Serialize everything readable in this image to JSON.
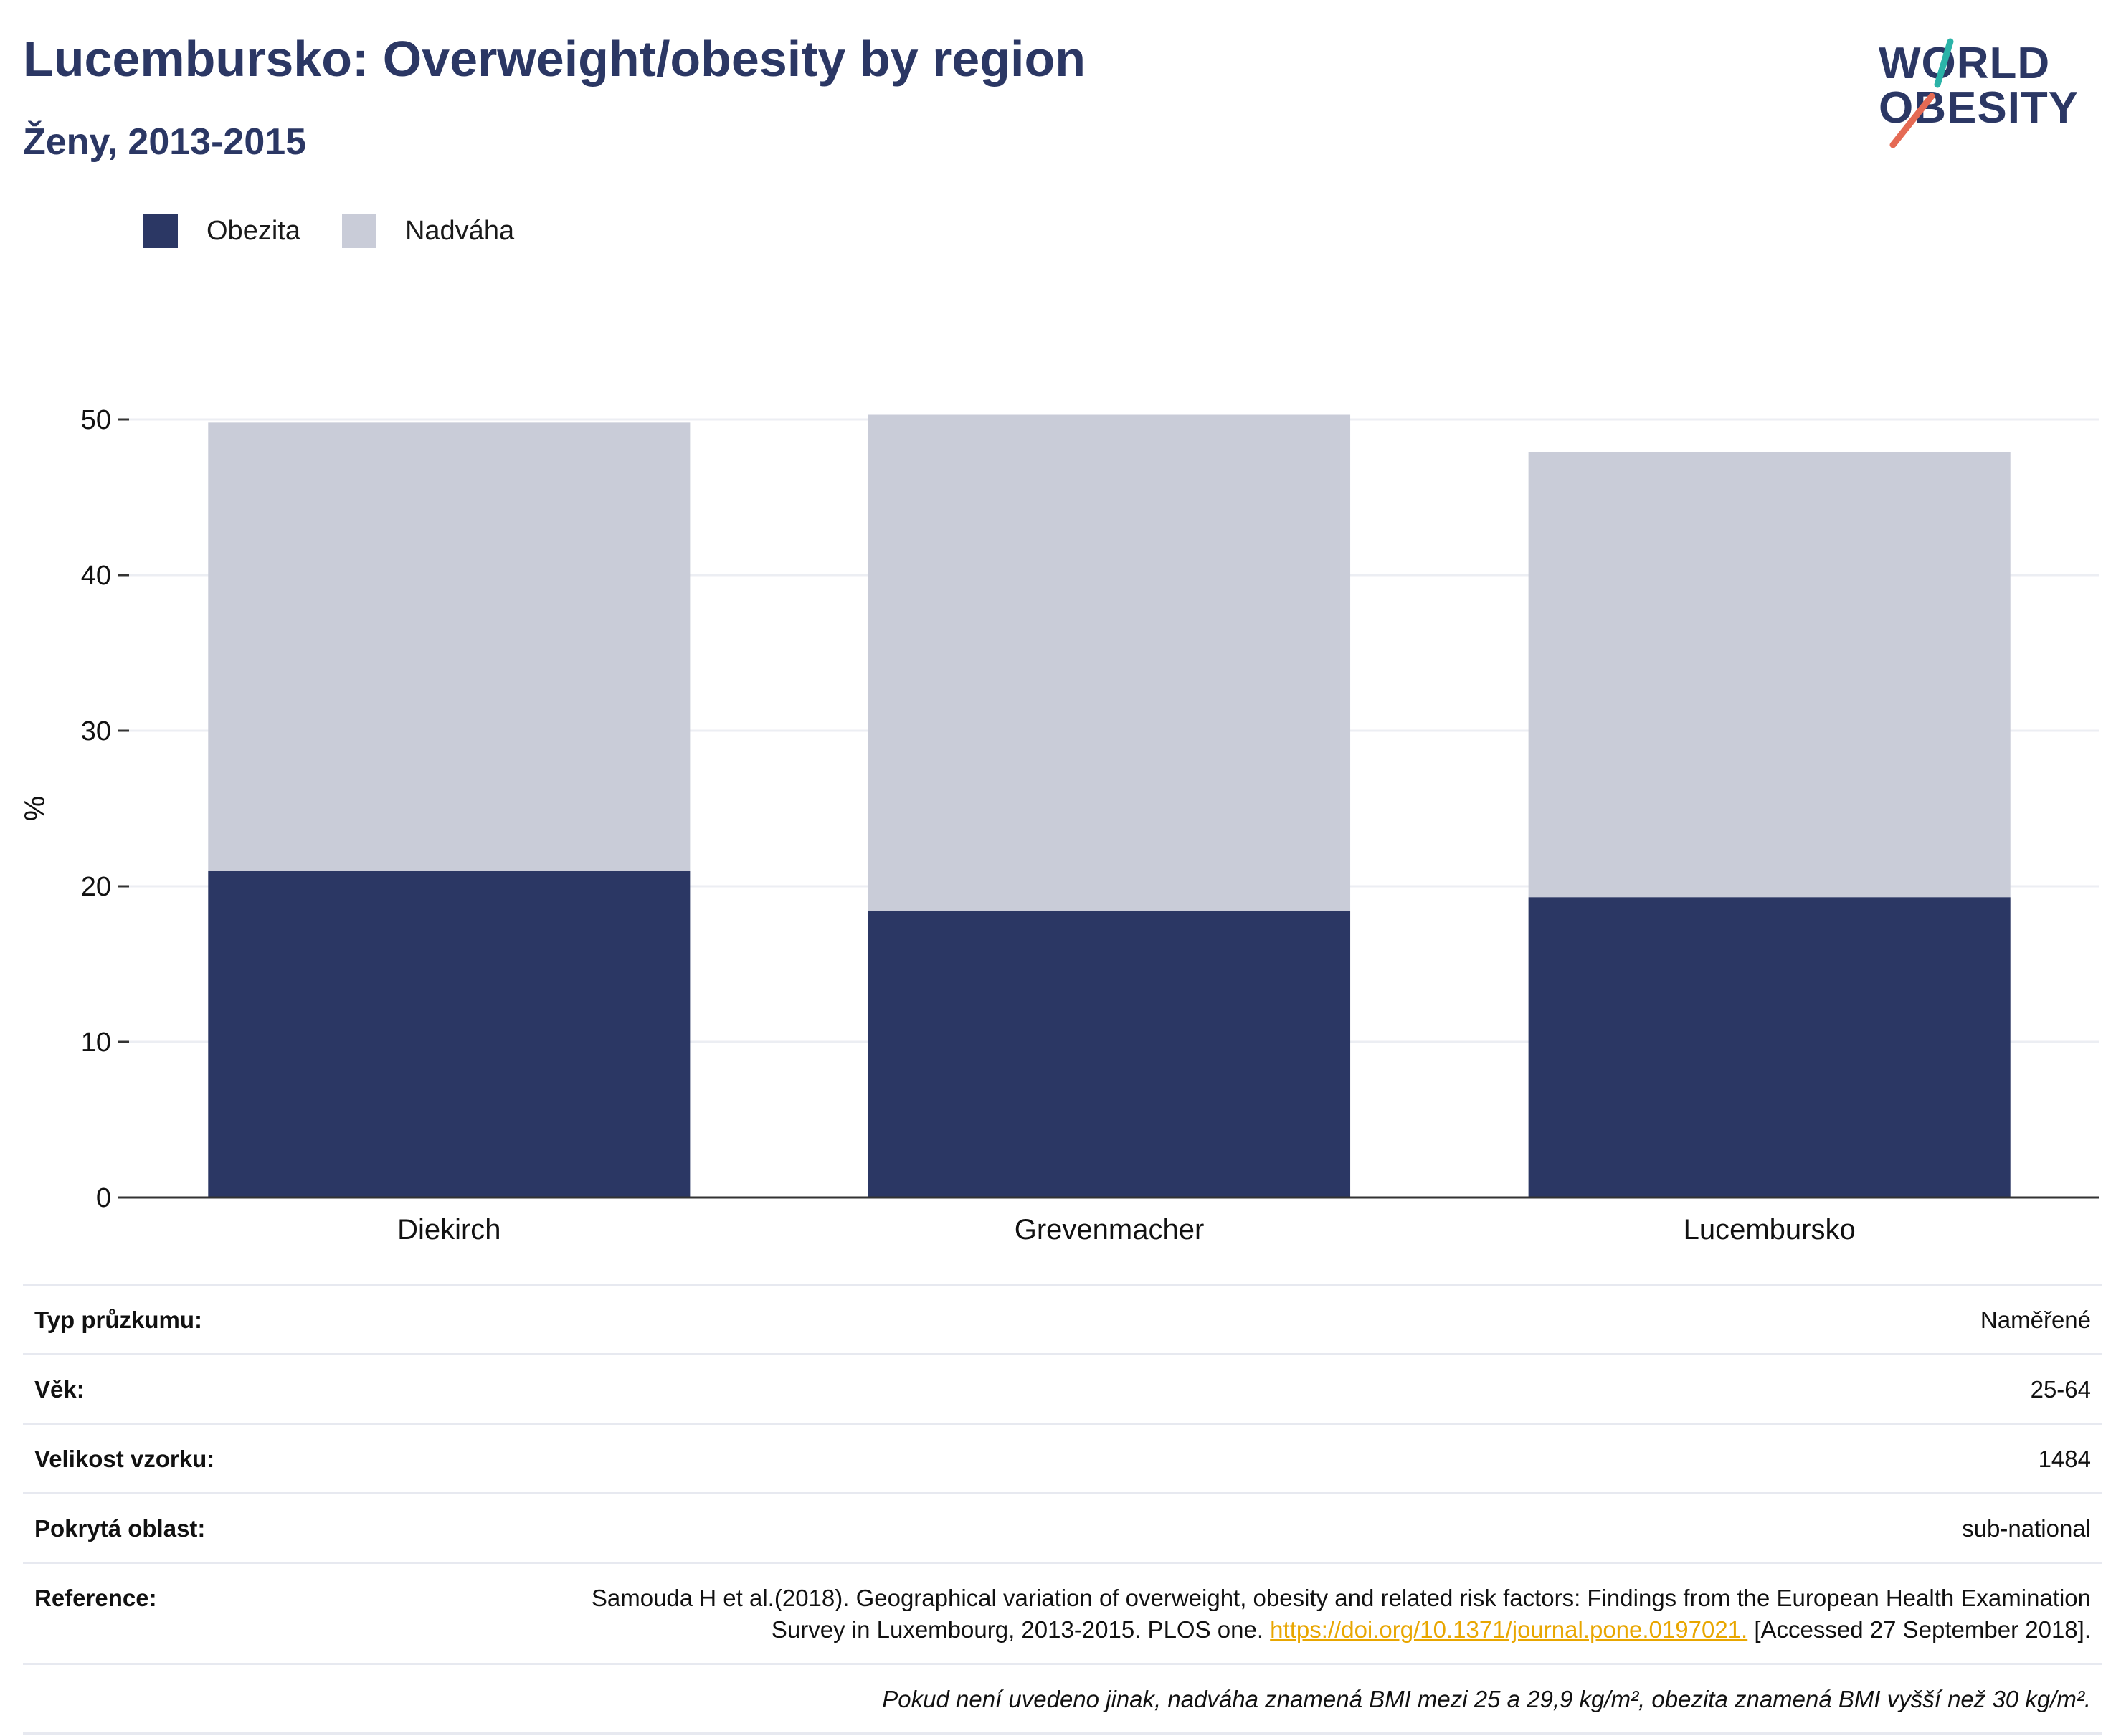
{
  "title": "Lucembursko: Overweight/obesity by region",
  "subtitle": "Ženy, 2013-2015",
  "logo": {
    "line1": "WORLD",
    "line2": "OBESITY"
  },
  "colors": {
    "obesity": "#2b3764",
    "overweight": "#c9ccd8",
    "title": "#2b3764",
    "link": "#e8a600",
    "logo_teal": "#2bb3a8",
    "logo_coral": "#e56a54"
  },
  "legend": [
    {
      "label": "Obezita",
      "color": "#2b3764"
    },
    {
      "label": "Nadváha",
      "color": "#c9ccd8"
    }
  ],
  "chart_data": {
    "type": "bar",
    "stacked": true,
    "categories": [
      "Diekirch",
      "Grevenmacher",
      "Lucembursko"
    ],
    "series": [
      {
        "name": "Obezita",
        "values": [
          21.0,
          18.4,
          19.3
        ]
      },
      {
        "name": "Nadváha",
        "values": [
          28.8,
          31.9,
          28.6
        ]
      }
    ],
    "totals": [
      49.8,
      50.3,
      47.9
    ],
    "ylabel": "%",
    "xlabel": "",
    "ylim": [
      0,
      50
    ],
    "yticks": [
      "0",
      "10",
      "20",
      "30",
      "40",
      "50"
    ],
    "grid": true,
    "legend_position": "top-left"
  },
  "info": {
    "survey_type": {
      "label": "Typ průzkumu:",
      "value": "Naměřené"
    },
    "age": {
      "label": "Věk:",
      "value": "25-64"
    },
    "sample_size": {
      "label": "Velikost vzorku:",
      "value": "1484"
    },
    "coverage": {
      "label": "Pokrytá oblast:",
      "value": "sub-national"
    },
    "reference": {
      "label": "Reference:",
      "text_before": "Samouda H et al.(2018). Geographical variation of overweight, obesity and related risk factors: Findings from the European Health Examination Survey in Luxembourg, 2013-2015. PLOS one. ",
      "link": "https://doi.org/10.1371/journal.pone.0197021.",
      "text_after": " [Accessed 27 September 2018]."
    },
    "note": "Pokud není uvedeno jinak, nadváha znamená BMI mezi 25 a 29,9 kg/m², obezita znamená BMI vyšší než 30 kg/m²."
  }
}
